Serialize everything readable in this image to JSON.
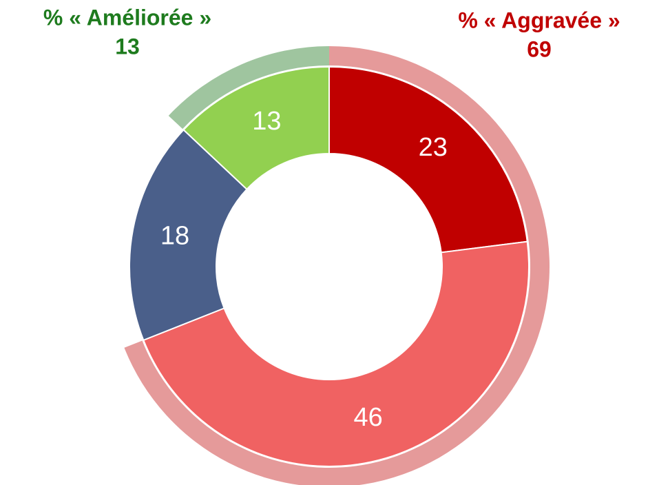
{
  "chart_data": {
    "type": "donut",
    "values": [
      23,
      46,
      18,
      13
    ],
    "colors": [
      "#c00000",
      "#f06262",
      "#4a5f8a",
      "#92d050"
    ],
    "groups": [
      {
        "name": "% « Aggravée »",
        "value": 69,
        "color": "#e59a9a",
        "text_color": "#c00000"
      },
      {
        "name": "% « Améliorée »",
        "value": 13,
        "color": "#9fc59f",
        "text_color": "#1e7b1e"
      }
    ]
  }
}
